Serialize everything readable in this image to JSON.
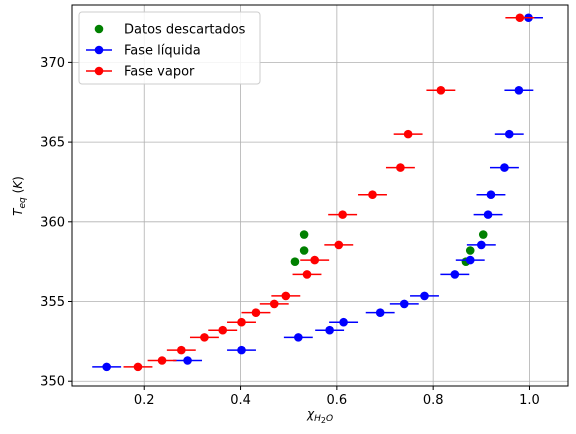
{
  "chart_data": {
    "type": "scatter",
    "xlabel": "χH₂O",
    "ylabel": "Teq (K)",
    "xlim": [
      0.05,
      1.08
    ],
    "ylim": [
      349.7,
      373.6
    ],
    "xticks": [
      "0.2",
      "0.4",
      "0.6",
      "0.8",
      "1.0"
    ],
    "yticks": [
      "350",
      "355",
      "360",
      "365",
      "370"
    ],
    "grid": true,
    "legend": "top-left",
    "series": [
      {
        "name": "Datos descartados",
        "color": "#008000",
        "points": [
          {
            "x": 0.532,
            "y": 359.2
          },
          {
            "x": 0.532,
            "y": 358.2
          },
          {
            "x": 0.513,
            "y": 357.5
          },
          {
            "x": 0.904,
            "y": 359.2
          },
          {
            "x": 0.877,
            "y": 358.2
          },
          {
            "x": 0.868,
            "y": 357.5
          }
        ]
      },
      {
        "name": "Fase líquida",
        "color": "#0000ff",
        "xerr": 0.03,
        "points": [
          {
            "x": 0.122,
            "y": 350.9
          },
          {
            "x": 0.29,
            "y": 351.3
          },
          {
            "x": 0.402,
            "y": 351.95
          },
          {
            "x": 0.52,
            "y": 352.75
          },
          {
            "x": 0.585,
            "y": 353.2
          },
          {
            "x": 0.614,
            "y": 353.7
          },
          {
            "x": 0.69,
            "y": 354.3
          },
          {
            "x": 0.74,
            "y": 354.85
          },
          {
            "x": 0.782,
            "y": 355.35
          },
          {
            "x": 0.845,
            "y": 356.7
          },
          {
            "x": 0.877,
            "y": 357.6
          },
          {
            "x": 0.9,
            "y": 358.55
          },
          {
            "x": 0.914,
            "y": 360.45
          },
          {
            "x": 0.92,
            "y": 361.7
          },
          {
            "x": 0.948,
            "y": 363.4
          },
          {
            "x": 0.958,
            "y": 365.5
          },
          {
            "x": 0.978,
            "y": 368.25
          },
          {
            "x": 0.998,
            "y": 372.8
          }
        ]
      },
      {
        "name": "Fase vapor",
        "color": "#ff0000",
        "xerr": 0.03,
        "points": [
          {
            "x": 0.187,
            "y": 350.9
          },
          {
            "x": 0.237,
            "y": 351.3
          },
          {
            "x": 0.277,
            "y": 351.95
          },
          {
            "x": 0.325,
            "y": 352.75
          },
          {
            "x": 0.363,
            "y": 353.2
          },
          {
            "x": 0.402,
            "y": 353.7
          },
          {
            "x": 0.432,
            "y": 354.3
          },
          {
            "x": 0.47,
            "y": 354.85
          },
          {
            "x": 0.494,
            "y": 355.35
          },
          {
            "x": 0.538,
            "y": 356.7
          },
          {
            "x": 0.554,
            "y": 357.6
          },
          {
            "x": 0.604,
            "y": 358.55
          },
          {
            "x": 0.612,
            "y": 360.45
          },
          {
            "x": 0.674,
            "y": 361.7
          },
          {
            "x": 0.732,
            "y": 363.4
          },
          {
            "x": 0.748,
            "y": 365.5
          },
          {
            "x": 0.816,
            "y": 368.25
          },
          {
            "x": 0.98,
            "y": 372.8
          }
        ]
      }
    ]
  }
}
